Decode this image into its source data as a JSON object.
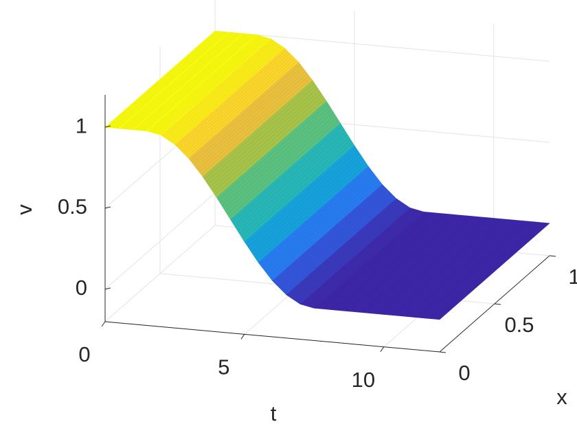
{
  "chart_data": {
    "type": "surface",
    "xlabel": "t",
    "ylabel": "x",
    "zlabel": "v",
    "t": [
      0,
      0.5,
      1,
      1.5,
      2,
      2.5,
      3,
      3.5,
      4,
      4.5,
      5,
      5.5,
      6,
      6.5,
      7,
      7.5,
      8,
      8.5,
      9,
      9.5,
      10,
      10.5,
      11,
      11.5,
      12
    ],
    "x": [
      0,
      0.5,
      1
    ],
    "v": [
      [
        1,
        1,
        1,
        1,
        0.983,
        0.933,
        0.854,
        0.75,
        0.629,
        0.5,
        0.371,
        0.25,
        0.146,
        0.067,
        0.017,
        0,
        0,
        0,
        0,
        0,
        0,
        0,
        0,
        0,
        0
      ],
      [
        1,
        1,
        1,
        1,
        0.983,
        0.933,
        0.854,
        0.75,
        0.629,
        0.5,
        0.371,
        0.25,
        0.146,
        0.067,
        0.017,
        0,
        0,
        0,
        0,
        0,
        0,
        0,
        0,
        0,
        0
      ],
      [
        1,
        1,
        1,
        1,
        0.983,
        0.933,
        0.854,
        0.75,
        0.629,
        0.5,
        0.371,
        0.25,
        0.146,
        0.067,
        0.017,
        0,
        0,
        0,
        0,
        0,
        0,
        0,
        0,
        0,
        0
      ]
    ],
    "tlim": [
      0,
      12
    ],
    "xlim": [
      0,
      1
    ],
    "vlim": [
      -0.2,
      1.2
    ],
    "tticks": [
      0,
      5,
      10
    ],
    "xticks": [
      0,
      0.5,
      1
    ],
    "vticks": [
      0,
      0.5,
      1
    ],
    "grid": true,
    "colormap": [
      "#3e26a8",
      "#2d70f5",
      "#13a9d6",
      "#33bea0",
      "#99c24a",
      "#fbbf3b",
      "#f9fb0e"
    ]
  }
}
